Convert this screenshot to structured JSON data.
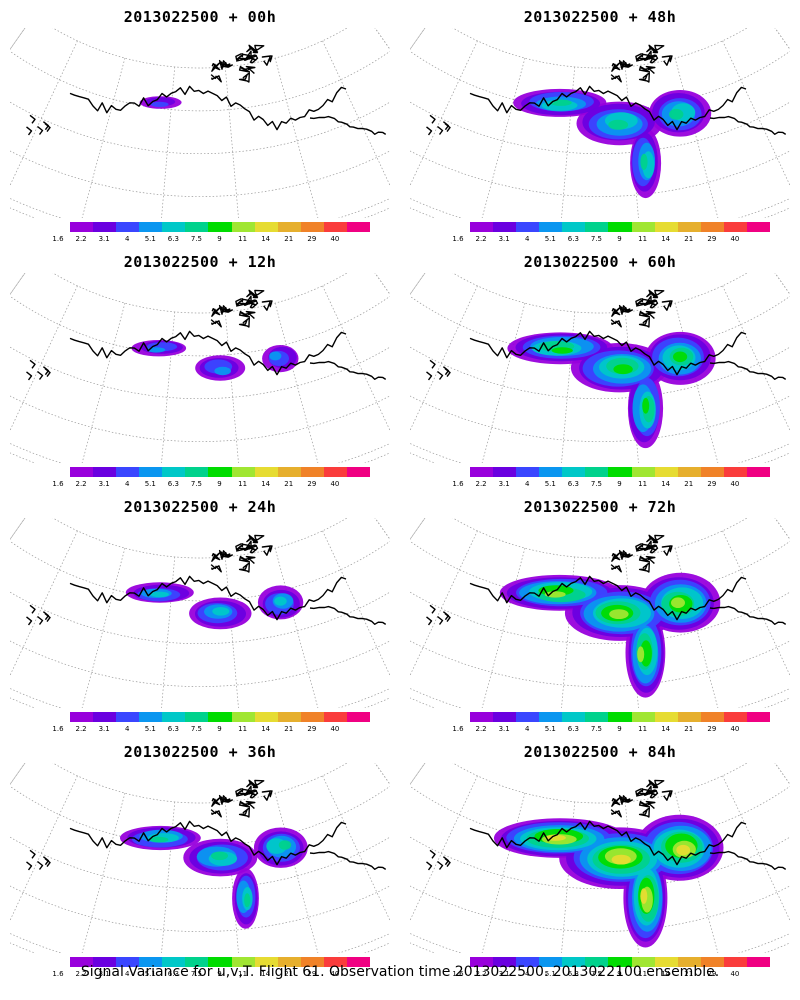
{
  "panels": [
    {
      "title": "2013022500 + 00h",
      "spread": 0.0
    },
    {
      "title": "2013022500 + 48h",
      "spread": 0.57
    },
    {
      "title": "2013022500 + 12h",
      "spread": 0.14
    },
    {
      "title": "2013022500 + 60h",
      "spread": 0.71
    },
    {
      "title": "2013022500 + 24h",
      "spread": 0.29
    },
    {
      "title": "2013022500 + 72h",
      "spread": 0.86
    },
    {
      "title": "2013022500 + 36h",
      "spread": 0.43
    },
    {
      "title": "2013022500 + 84h",
      "spread": 1.0
    }
  ],
  "colorbar": {
    "labels": [
      "1.6",
      "2.2",
      "3.1",
      "4",
      "5.1",
      "6.3",
      "7.5",
      "9",
      "11",
      "14",
      "21",
      "29",
      "40"
    ],
    "colors": [
      "#9800dc",
      "#6a00e0",
      "#3a46ff",
      "#0a96f0",
      "#00c8c8",
      "#00d28c",
      "#00dc00",
      "#a0e632",
      "#e6dc32",
      "#e6af2d",
      "#f08228",
      "#fa3c3c",
      "#f00082"
    ]
  },
  "footer": "Signal Variance for u,v,T. Flight 61. Observation time 2013022500. 2013022100 ensemble."
}
